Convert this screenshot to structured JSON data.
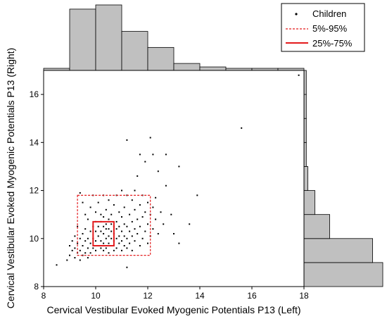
{
  "chart_data": {
    "type": "scatter",
    "xlabel": "Cervical Vestibular Evoked Myogenic Potentials P13 (Left)",
    "ylabel": "Cervical Vestibular Evoked Myogenic Potentials P13 (Right)",
    "xlim": [
      8,
      18
    ],
    "ylim": [
      8,
      17
    ],
    "x_ticks": [
      "8",
      "10",
      "12",
      "14",
      "16",
      "18"
    ],
    "y_ticks": [
      "8",
      "10",
      "12",
      "14",
      "16"
    ],
    "x_tick_values": [
      8,
      10,
      12,
      14,
      16,
      18
    ],
    "y_tick_values": [
      8,
      10,
      12,
      14,
      16
    ],
    "legend": {
      "position": "top-right",
      "entries": [
        {
          "label": "Children",
          "style": "dot",
          "color": "#000000"
        },
        {
          "label": "5%-95%",
          "style": "dashed",
          "color": "#e31a1c"
        },
        {
          "label": "25%-75%",
          "style": "solid",
          "color": "#e31a1c"
        }
      ]
    },
    "box_5_95": {
      "x": [
        9.3,
        12.1
      ],
      "y": [
        9.3,
        11.8
      ]
    },
    "box_25_75": {
      "x": [
        9.9,
        10.7
      ],
      "y": [
        9.7,
        10.7
      ]
    },
    "hist_top": {
      "bins": [
        8,
        9,
        10,
        11,
        12,
        13,
        14,
        15,
        16,
        17,
        18
      ],
      "counts": [
        3,
        88,
        94,
        56,
        33,
        10,
        5,
        3,
        3,
        3
      ],
      "max_count": 94
    },
    "hist_right": {
      "bins": [
        8,
        9,
        10,
        11,
        12,
        13,
        14,
        15,
        16,
        17
      ],
      "counts": [
        101,
        88,
        33,
        14,
        5,
        3,
        3,
        3,
        3
      ],
      "max_count": 101
    },
    "colors": {
      "points": "#000000",
      "boxes": "#e31a1c",
      "hist_fill": "#c0c0c0",
      "hist_edge": "#000000"
    },
    "series": [
      {
        "name": "Children",
        "points": [
          [
            8.5,
            8.9
          ],
          [
            8.9,
            9.1
          ],
          [
            9.0,
            9.3
          ],
          [
            9.0,
            9.7
          ],
          [
            9.1,
            9.5
          ],
          [
            9.1,
            9.9
          ],
          [
            9.2,
            9.2
          ],
          [
            9.2,
            9.6
          ],
          [
            9.2,
            10.1
          ],
          [
            9.3,
            9.4
          ],
          [
            9.3,
            9.8
          ],
          [
            9.3,
            10.5
          ],
          [
            9.4,
            9.1
          ],
          [
            9.4,
            9.5
          ],
          [
            9.4,
            10.0
          ],
          [
            9.4,
            11.9
          ],
          [
            9.5,
            9.3
          ],
          [
            9.5,
            9.7
          ],
          [
            9.5,
            10.2
          ],
          [
            9.5,
            11.5
          ],
          [
            9.6,
            9.4
          ],
          [
            9.6,
            9.9
          ],
          [
            9.6,
            10.4
          ],
          [
            9.6,
            11.0
          ],
          [
            9.7,
            9.2
          ],
          [
            9.7,
            9.6
          ],
          [
            9.7,
            10.0
          ],
          [
            9.7,
            10.8
          ],
          [
            9.8,
            9.4
          ],
          [
            9.8,
            9.8
          ],
          [
            9.8,
            10.3
          ],
          [
            9.8,
            11.3
          ],
          [
            9.9,
            9.6
          ],
          [
            9.9,
            10.0
          ],
          [
            9.9,
            10.5
          ],
          [
            9.9,
            11.8
          ],
          [
            10.0,
            9.5
          ],
          [
            10.0,
            9.9
          ],
          [
            10.0,
            10.3
          ],
          [
            10.0,
            10.7
          ],
          [
            10.0,
            11.1
          ],
          [
            10.1,
            9.7
          ],
          [
            10.1,
            10.1
          ],
          [
            10.1,
            10.5
          ],
          [
            10.1,
            11.5
          ],
          [
            10.2,
            9.6
          ],
          [
            10.2,
            9.9
          ],
          [
            10.2,
            10.3
          ],
          [
            10.2,
            10.7
          ],
          [
            10.2,
            11.0
          ],
          [
            10.3,
            9.5
          ],
          [
            10.3,
            9.8
          ],
          [
            10.3,
            10.2
          ],
          [
            10.3,
            10.5
          ],
          [
            10.3,
            10.9
          ],
          [
            10.3,
            11.8
          ],
          [
            10.4,
            9.6
          ],
          [
            10.4,
            10.0
          ],
          [
            10.4,
            10.4
          ],
          [
            10.4,
            10.6
          ],
          [
            10.4,
            11.2
          ],
          [
            10.5,
            9.4
          ],
          [
            10.5,
            9.8
          ],
          [
            10.5,
            10.1
          ],
          [
            10.5,
            10.4
          ],
          [
            10.5,
            10.8
          ],
          [
            10.5,
            11.6
          ],
          [
            10.6,
            9.7
          ],
          [
            10.6,
            10.0
          ],
          [
            10.6,
            10.3
          ],
          [
            10.6,
            10.6
          ],
          [
            10.6,
            11.0
          ],
          [
            10.7,
            9.5
          ],
          [
            10.7,
            9.9
          ],
          [
            10.7,
            10.2
          ],
          [
            10.7,
            10.5
          ],
          [
            10.7,
            11.4
          ],
          [
            10.8,
            9.6
          ],
          [
            10.8,
            10.0
          ],
          [
            10.8,
            10.4
          ],
          [
            10.8,
            10.7
          ],
          [
            10.8,
            11.8
          ],
          [
            10.9,
            9.8
          ],
          [
            10.9,
            10.1
          ],
          [
            10.9,
            10.5
          ],
          [
            10.9,
            11.1
          ],
          [
            11.0,
            9.5
          ],
          [
            11.0,
            9.9
          ],
          [
            11.0,
            10.3
          ],
          [
            11.0,
            10.9
          ],
          [
            11.0,
            12.0
          ],
          [
            11.1,
            9.7
          ],
          [
            11.1,
            10.1
          ],
          [
            11.1,
            10.6
          ],
          [
            11.1,
            11.3
          ],
          [
            11.2,
            8.8
          ],
          [
            11.2,
            9.6
          ],
          [
            11.2,
            10.0
          ],
          [
            11.2,
            10.5
          ],
          [
            11.2,
            11.8
          ],
          [
            11.2,
            14.1
          ],
          [
            11.3,
            9.8
          ],
          [
            11.3,
            10.3
          ],
          [
            11.3,
            11.0
          ],
          [
            11.4,
            9.5
          ],
          [
            11.4,
            10.1
          ],
          [
            11.4,
            10.7
          ],
          [
            11.4,
            11.6
          ],
          [
            11.5,
            9.9
          ],
          [
            11.5,
            10.4
          ],
          [
            11.5,
            11.2
          ],
          [
            11.5,
            12.0
          ],
          [
            11.6,
            10.2
          ],
          [
            11.6,
            10.8
          ],
          [
            11.6,
            12.6
          ],
          [
            11.7,
            9.7
          ],
          [
            11.7,
            10.5
          ],
          [
            11.7,
            11.4
          ],
          [
            11.7,
            13.5
          ],
          [
            11.8,
            10.0
          ],
          [
            11.8,
            10.9
          ],
          [
            11.8,
            11.8
          ],
          [
            11.9,
            10.3
          ],
          [
            11.9,
            11.1
          ],
          [
            11.9,
            13.2
          ],
          [
            12.0,
            9.8
          ],
          [
            12.0,
            10.6
          ],
          [
            12.0,
            11.5
          ],
          [
            12.1,
            10.1
          ],
          [
            12.1,
            11.0
          ],
          [
            12.1,
            14.2
          ],
          [
            12.2,
            10.4
          ],
          [
            12.2,
            11.3
          ],
          [
            12.2,
            13.5
          ],
          [
            12.3,
            10.8
          ],
          [
            12.3,
            11.7
          ],
          [
            12.4,
            10.2
          ],
          [
            12.4,
            12.8
          ],
          [
            12.5,
            11.1
          ],
          [
            12.6,
            10.6
          ],
          [
            12.7,
            12.2
          ],
          [
            12.7,
            13.5
          ],
          [
            12.9,
            11.0
          ],
          [
            13.0,
            10.2
          ],
          [
            13.2,
            9.8
          ],
          [
            13.2,
            13.0
          ],
          [
            13.6,
            10.6
          ],
          [
            13.9,
            11.8
          ],
          [
            15.6,
            14.6
          ],
          [
            17.8,
            16.8
          ]
        ]
      }
    ]
  }
}
